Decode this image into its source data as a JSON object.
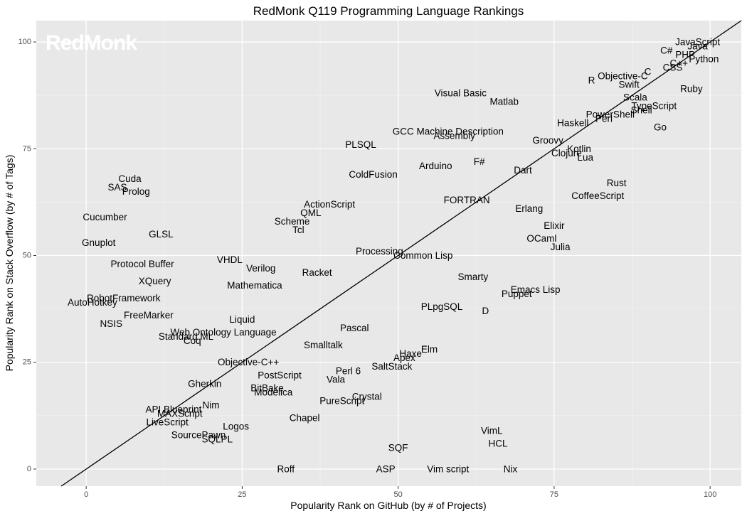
{
  "chart_data": {
    "type": "scatter",
    "title": "RedMonk Q119 Programming Language Rankings",
    "xlabel": "Popularity Rank on GitHub (by # of Projects)",
    "ylabel": "Popularity Rank on Stack Overflow (by # of Tags)",
    "watermark": "RedMonk",
    "xlim": [
      -8,
      105
    ],
    "ylim": [
      -4,
      105
    ],
    "xticks": [
      0,
      25,
      50,
      75,
      100
    ],
    "yticks": [
      0,
      25,
      50,
      75,
      100
    ],
    "grid": true,
    "reference_line": "y = x",
    "colors": {
      "panel_background": "#e8e8e8",
      "grid_major": "#ffffff",
      "grid_minor": "#f2f2f2",
      "line": "#000000",
      "text": "#000000",
      "tick_text": "#4d4d4d"
    },
    "points": [
      {
        "label": "JavaScript",
        "x": 98,
        "y": 100
      },
      {
        "label": "Java",
        "x": 98,
        "y": 99
      },
      {
        "label": "C#",
        "x": 93,
        "y": 98
      },
      {
        "label": "PHP",
        "x": 96,
        "y": 97
      },
      {
        "label": "Python",
        "x": 99,
        "y": 96
      },
      {
        "label": "C++",
        "x": 95,
        "y": 95
      },
      {
        "label": "CSS",
        "x": 94,
        "y": 94
      },
      {
        "label": "C",
        "x": 90,
        "y": 93
      },
      {
        "label": "Objective-C",
        "x": 86,
        "y": 92
      },
      {
        "label": "R",
        "x": 81,
        "y": 91
      },
      {
        "label": "Swift",
        "x": 87,
        "y": 90
      },
      {
        "label": "Ruby",
        "x": 97,
        "y": 89
      },
      {
        "label": "Visual Basic",
        "x": 60,
        "y": 88
      },
      {
        "label": "Scala",
        "x": 88,
        "y": 87
      },
      {
        "label": "Matlab",
        "x": 67,
        "y": 86
      },
      {
        "label": "TypeScript",
        "x": 91,
        "y": 85
      },
      {
        "label": "Shell",
        "x": 89,
        "y": 84
      },
      {
        "label": "PowerShell",
        "x": 84,
        "y": 83
      },
      {
        "label": "Perl",
        "x": 83,
        "y": 82
      },
      {
        "label": "Haskell",
        "x": 78,
        "y": 81
      },
      {
        "label": "Go",
        "x": 92,
        "y": 80
      },
      {
        "label": "GCC Machine Description",
        "x": 58,
        "y": 79
      },
      {
        "label": "Assembly",
        "x": 59,
        "y": 78
      },
      {
        "label": "Groovy",
        "x": 74,
        "y": 77
      },
      {
        "label": "PLSQL",
        "x": 44,
        "y": 76
      },
      {
        "label": "Kotlin",
        "x": 79,
        "y": 75
      },
      {
        "label": "Clojure",
        "x": 77,
        "y": 74
      },
      {
        "label": "Lua",
        "x": 80,
        "y": 73
      },
      {
        "label": "F#",
        "x": 63,
        "y": 72
      },
      {
        "label": "Arduino",
        "x": 56,
        "y": 71
      },
      {
        "label": "Dart",
        "x": 70,
        "y": 70
      },
      {
        "label": "ColdFusion",
        "x": 46,
        "y": 69
      },
      {
        "label": "Cuda",
        "x": 7,
        "y": 68
      },
      {
        "label": "Rust",
        "x": 85,
        "y": 67
      },
      {
        "label": "SAS",
        "x": 5,
        "y": 66
      },
      {
        "label": "Prolog",
        "x": 8,
        "y": 65
      },
      {
        "label": "CoffeeScript",
        "x": 82,
        "y": 64
      },
      {
        "label": "FORTRAN",
        "x": 61,
        "y": 63
      },
      {
        "label": "ActionScript",
        "x": 39,
        "y": 62
      },
      {
        "label": "Erlang",
        "x": 71,
        "y": 61
      },
      {
        "label": "QML",
        "x": 36,
        "y": 60
      },
      {
        "label": "Cucumber",
        "x": 3,
        "y": 59
      },
      {
        "label": "Scheme",
        "x": 33,
        "y": 58
      },
      {
        "label": "Elixir",
        "x": 75,
        "y": 57
      },
      {
        "label": "Tcl",
        "x": 34,
        "y": 56
      },
      {
        "label": "GLSL",
        "x": 12,
        "y": 55
      },
      {
        "label": "OCaml",
        "x": 73,
        "y": 54
      },
      {
        "label": "Gnuplot",
        "x": 2,
        "y": 53
      },
      {
        "label": "Julia",
        "x": 76,
        "y": 52
      },
      {
        "label": "Processing",
        "x": 47,
        "y": 51
      },
      {
        "label": "Common Lisp",
        "x": 54,
        "y": 50
      },
      {
        "label": "VHDL",
        "x": 23,
        "y": 49
      },
      {
        "label": "Protocol Buffer",
        "x": 9,
        "y": 48
      },
      {
        "label": "Verilog",
        "x": 28,
        "y": 47
      },
      {
        "label": "Racket",
        "x": 37,
        "y": 46
      },
      {
        "label": "Smarty",
        "x": 62,
        "y": 45
      },
      {
        "label": "XQuery",
        "x": 11,
        "y": 44
      },
      {
        "label": "Mathematica",
        "x": 27,
        "y": 43
      },
      {
        "label": "Emacs Lisp",
        "x": 72,
        "y": 42
      },
      {
        "label": "Puppet",
        "x": 69,
        "y": 41
      },
      {
        "label": "RobotFramework",
        "x": 6,
        "y": 40
      },
      {
        "label": "AutoHotkey",
        "x": 1,
        "y": 39
      },
      {
        "label": "PLpgSQL",
        "x": 57,
        "y": 38
      },
      {
        "label": "D",
        "x": 64,
        "y": 37
      },
      {
        "label": "FreeMarker",
        "x": 10,
        "y": 36
      },
      {
        "label": "Liquid",
        "x": 25,
        "y": 35
      },
      {
        "label": "NSIS",
        "x": 4,
        "y": 34
      },
      {
        "label": "Pascal",
        "x": 43,
        "y": 33
      },
      {
        "label": "Web Ontology Language",
        "x": 22,
        "y": 32
      },
      {
        "label": "Standard ML",
        "x": 16,
        "y": 31
      },
      {
        "label": "Coq",
        "x": 17,
        "y": 30
      },
      {
        "label": "Smalltalk",
        "x": 38,
        "y": 29
      },
      {
        "label": "Elm",
        "x": 55,
        "y": 28
      },
      {
        "label": "Haxe",
        "x": 52,
        "y": 27
      },
      {
        "label": "Apex",
        "x": 51,
        "y": 26
      },
      {
        "label": "Objective-C++",
        "x": 26,
        "y": 25
      },
      {
        "label": "SaltStack",
        "x": 49,
        "y": 24
      },
      {
        "label": "Perl 6",
        "x": 42,
        "y": 23
      },
      {
        "label": "PostScript",
        "x": 31,
        "y": 22
      },
      {
        "label": "Vala",
        "x": 40,
        "y": 21
      },
      {
        "label": "Gherkin",
        "x": 19,
        "y": 20
      },
      {
        "label": "BitBake",
        "x": 29,
        "y": 19
      },
      {
        "label": "Modelica",
        "x": 30,
        "y": 18
      },
      {
        "label": "Crystal",
        "x": 45,
        "y": 17
      },
      {
        "label": "PureScript",
        "x": 41,
        "y": 16
      },
      {
        "label": "Nim",
        "x": 20,
        "y": 15
      },
      {
        "label": "API Blueprint",
        "x": 14,
        "y": 14
      },
      {
        "label": "MAXScript",
        "x": 15,
        "y": 13
      },
      {
        "label": "Chapel",
        "x": 35,
        "y": 12
      },
      {
        "label": "LiveScript",
        "x": 13,
        "y": 11
      },
      {
        "label": "Logos",
        "x": 24,
        "y": 10
      },
      {
        "label": "VimL",
        "x": 65,
        "y": 9
      },
      {
        "label": "SourcePawn",
        "x": 18,
        "y": 8
      },
      {
        "label": "SQLPL",
        "x": 21,
        "y": 7
      },
      {
        "label": "HCL",
        "x": 66,
        "y": 6
      },
      {
        "label": "SQF",
        "x": 50,
        "y": 5
      },
      {
        "label": "Roff",
        "x": 32,
        "y": 0
      },
      {
        "label": "ASP",
        "x": 48,
        "y": 0
      },
      {
        "label": "Vim script",
        "x": 58,
        "y": 0
      },
      {
        "label": "Nix",
        "x": 68,
        "y": 0
      }
    ]
  }
}
